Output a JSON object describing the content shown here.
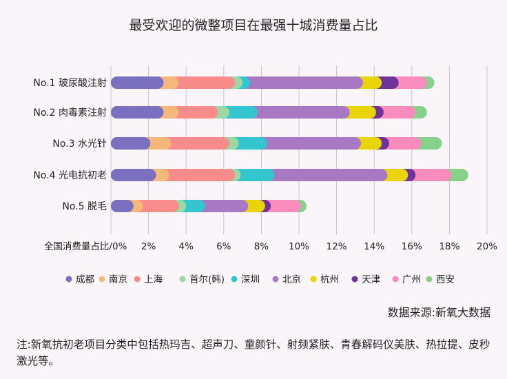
{
  "chart_data": {
    "type": "bar",
    "orientation": "horizontal",
    "stacked": true,
    "title": "最受欢迎的微整项目在最强十城消费量占比",
    "xlabel": "全国消费量占比/",
    "xlim": [
      0,
      20
    ],
    "xticks": [
      "0%",
      "2%",
      "4%",
      "6%",
      "8%",
      "10%",
      "12%",
      "14%",
      "16%",
      "18%",
      "20%"
    ],
    "grid": true,
    "legend_position": "bottom",
    "categories": [
      "No.1 玻尿酸注射",
      "No.2 肉毒素注射",
      "No.3 水光针",
      "No.4 光电抗初老",
      "No.5 脱毛"
    ],
    "series": [
      {
        "name": "成都",
        "color": "#7b6fc0",
        "values": [
          2.8,
          2.8,
          2.1,
          2.4,
          1.2
        ]
      },
      {
        "name": "南京",
        "color": "#f4b87a",
        "values": [
          0.8,
          0.8,
          1.1,
          0.7,
          0.5
        ]
      },
      {
        "name": "上海",
        "color": "#f88c8a",
        "values": [
          3.0,
          2.1,
          3.1,
          3.5,
          1.9
        ]
      },
      {
        "name": "首尔(韩)",
        "color": "#9ad9a3",
        "values": [
          0.4,
          0.6,
          0.5,
          0.3,
          0.4
        ]
      },
      {
        "name": "深圳",
        "color": "#33c6d0",
        "values": [
          0.4,
          1.5,
          1.5,
          1.8,
          1.0
        ]
      },
      {
        "name": "北京",
        "color": "#a978c4",
        "values": [
          6.0,
          4.9,
          5.0,
          6.0,
          2.3
        ]
      },
      {
        "name": "杭州",
        "color": "#e9d40a",
        "values": [
          1.0,
          1.4,
          1.1,
          1.1,
          0.9
        ]
      },
      {
        "name": "天津",
        "color": "#6e349a",
        "values": [
          0.9,
          0.4,
          0.4,
          0.4,
          0.3
        ]
      },
      {
        "name": "广州",
        "color": "#f98bbd",
        "values": [
          1.5,
          1.7,
          1.7,
          1.9,
          1.6
        ]
      },
      {
        "name": "西安",
        "color": "#86d28a",
        "values": [
          0.4,
          0.6,
          1.1,
          0.9,
          0.3
        ]
      }
    ]
  },
  "source": "数据来源:新氧大数据",
  "note": "注:新氧抗初老项目分类中包括热玛吉、超声刀、童颜针、射频紧肤、青春解码仪美肤、热拉提、皮秒激光等。"
}
